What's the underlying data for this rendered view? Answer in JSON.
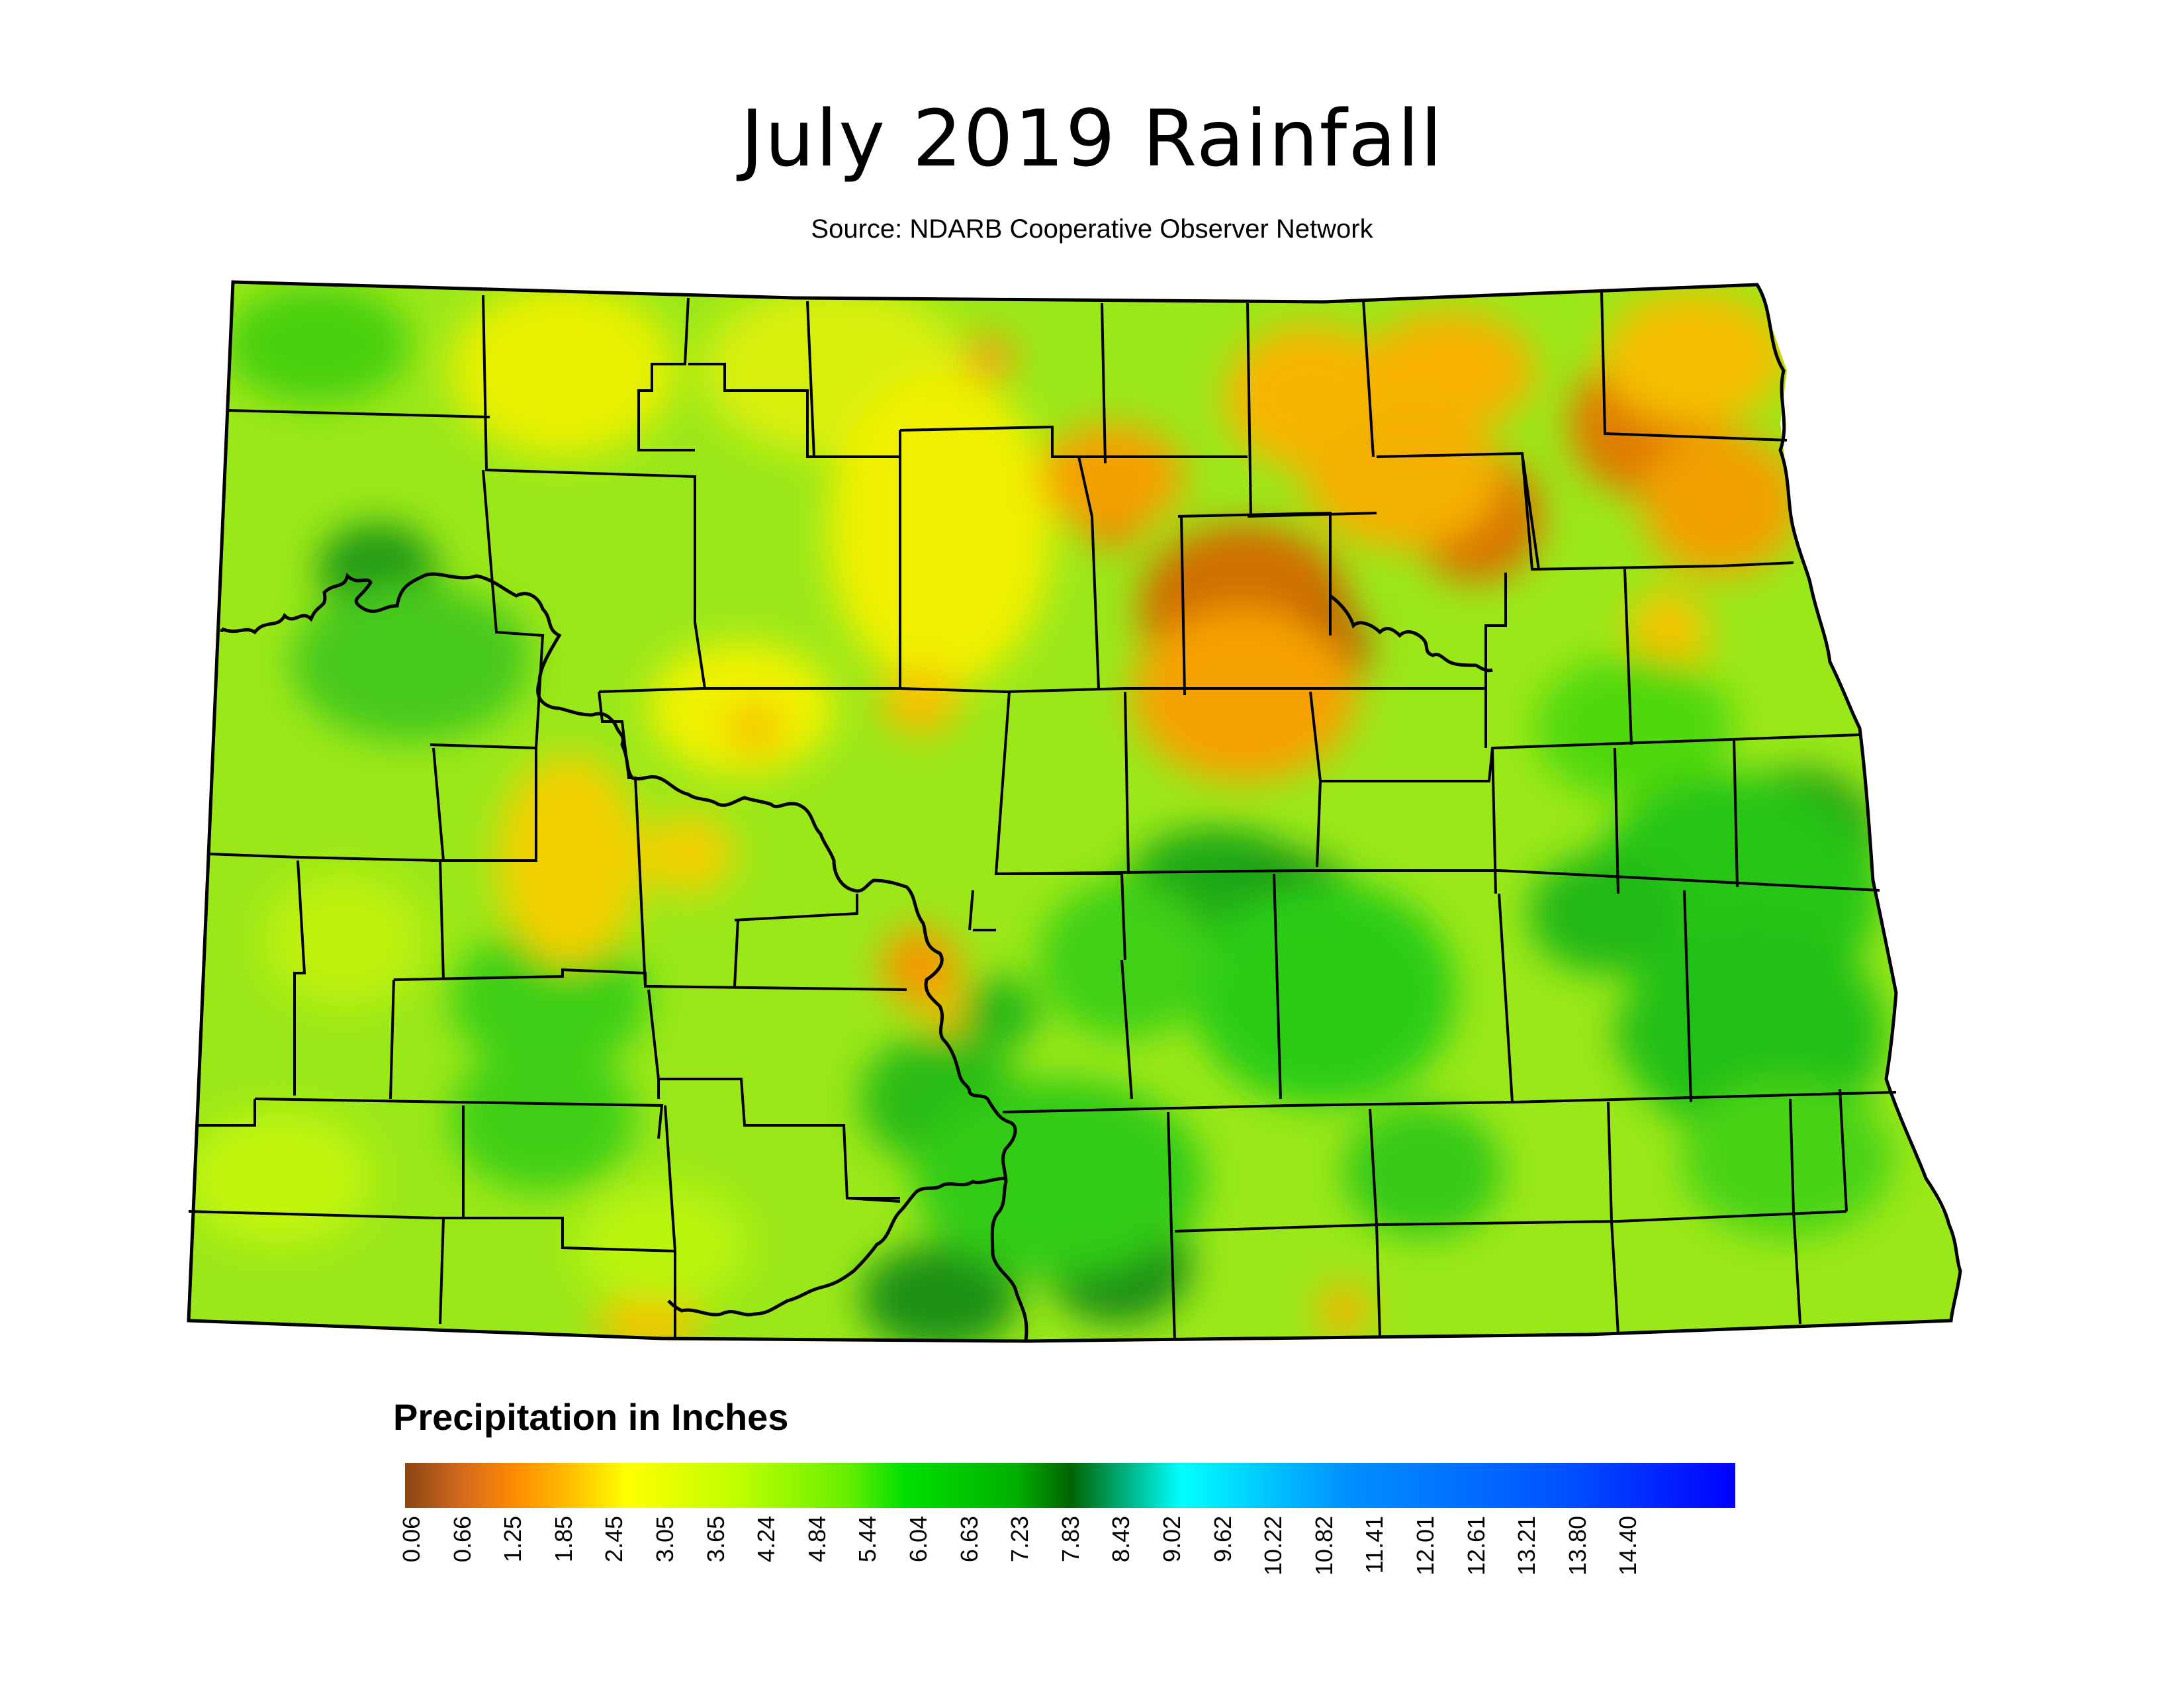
{
  "title": "July 2019 Rainfall",
  "source": "Source: NDARB Cooperative Observer Network",
  "legend": {
    "title": "Precipitation in Inches",
    "ticks": [
      "0.06",
      "0.66",
      "1.25",
      "1.85",
      "2.45",
      "3.05",
      "3.65",
      "4.24",
      "4.84",
      "5.44",
      "6.04",
      "6.63",
      "7.23",
      "7.83",
      "8.43",
      "9.02",
      "9.62",
      "10.22",
      "10.82",
      "11.41",
      "12.01",
      "12.61",
      "13.21",
      "13.80",
      "14.40"
    ],
    "color_stops": [
      {
        "value": 0.06,
        "color": "#8b4513"
      },
      {
        "value": 0.66,
        "color": "#d2691e"
      },
      {
        "value": 1.25,
        "color": "#ff8c00"
      },
      {
        "value": 1.85,
        "color": "#ffc000"
      },
      {
        "value": 2.45,
        "color": "#ffff00"
      },
      {
        "value": 3.65,
        "color": "#bfff00"
      },
      {
        "value": 4.84,
        "color": "#66ee00"
      },
      {
        "value": 5.44,
        "color": "#00e000"
      },
      {
        "value": 6.63,
        "color": "#00b000"
      },
      {
        "value": 7.23,
        "color": "#006400"
      },
      {
        "value": 8.43,
        "color": "#00ffff"
      },
      {
        "value": 10.22,
        "color": "#0090ff"
      },
      {
        "value": 12.61,
        "color": "#0050ff"
      },
      {
        "value": 14.4,
        "color": "#0000ff"
      }
    ]
  }
}
